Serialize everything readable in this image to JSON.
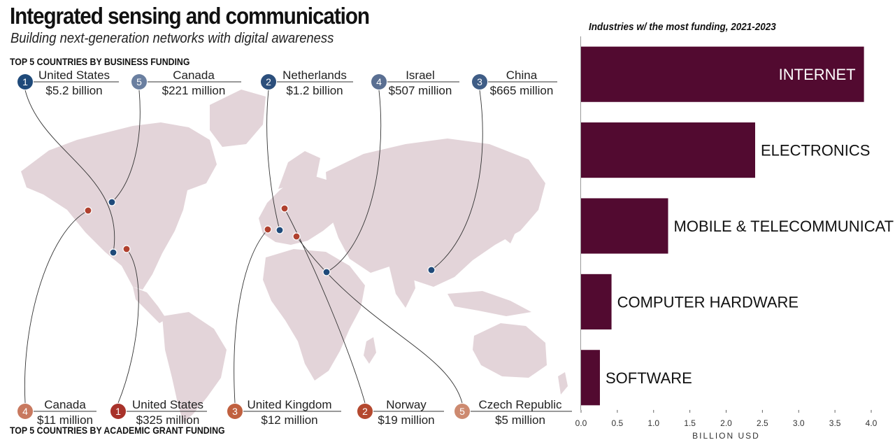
{
  "header": {
    "title": "Integrated sensing and communication",
    "subtitle": "Building next-generation networks with digital awareness"
  },
  "business_funding": {
    "label": "TOP 5 COUNTRIES BY BUSINESS FUNDING",
    "color": "#1f4a7a",
    "items": [
      {
        "rank": "1",
        "country": "United States",
        "amount": "$5.2 billion",
        "rank_color": "#1f4a7a"
      },
      {
        "rank": "5",
        "country": "Canada",
        "amount": "$221 million",
        "rank_color": "#6a7fa0"
      },
      {
        "rank": "2",
        "country": "Netherlands",
        "amount": "$1.2 billion",
        "rank_color": "#2c4f7c"
      },
      {
        "rank": "4",
        "country": "Israel",
        "amount": "$507 million",
        "rank_color": "#5a6f92"
      },
      {
        "rank": "3",
        "country": "China",
        "amount": "$665 million",
        "rank_color": "#3f5d86"
      }
    ]
  },
  "academic_funding": {
    "label": "TOP 5 COUNTRIES BY ACADEMIC GRANT FUNDING",
    "color": "#b0402e",
    "items": [
      {
        "rank": "4",
        "country": "Canada",
        "amount": "$11 million",
        "rank_color": "#c8795f"
      },
      {
        "rank": "1",
        "country": "United States",
        "amount": "$325 million",
        "rank_color": "#a8322a"
      },
      {
        "rank": "3",
        "country": "United Kingdom",
        "amount": "$12 million",
        "rank_color": "#c0603f"
      },
      {
        "rank": "2",
        "country": "Norway",
        "amount": "$19 million",
        "rank_color": "#b4492f"
      },
      {
        "rank": "5",
        "country": "Czech Republic",
        "amount": "$5 million",
        "rank_color": "#cd8a70"
      }
    ]
  },
  "chart_data": {
    "type": "bar",
    "orientation": "horizontal",
    "title": "Industries w/ the most funding, 2021-2023",
    "xlabel": "BILLION USD",
    "ylabel": "",
    "xlim": [
      0,
      4.0
    ],
    "ticks": [
      "0.0",
      "0.5",
      "1.0",
      "1.5",
      "2.0",
      "2.5",
      "3.0",
      "3.5",
      "4.0"
    ],
    "categories": [
      "INTERNET",
      "ELECTRONICS",
      "MOBILE & TELECOMMUNICATIONS",
      "COMPUTER HARDWARE",
      "SOFTWARE"
    ],
    "values": [
      3.9,
      2.4,
      1.2,
      0.42,
      0.26
    ],
    "bar_color": "#520a30",
    "grid": false
  },
  "map": {
    "land_color": "#e3d4d9",
    "line_color": "#333333"
  }
}
